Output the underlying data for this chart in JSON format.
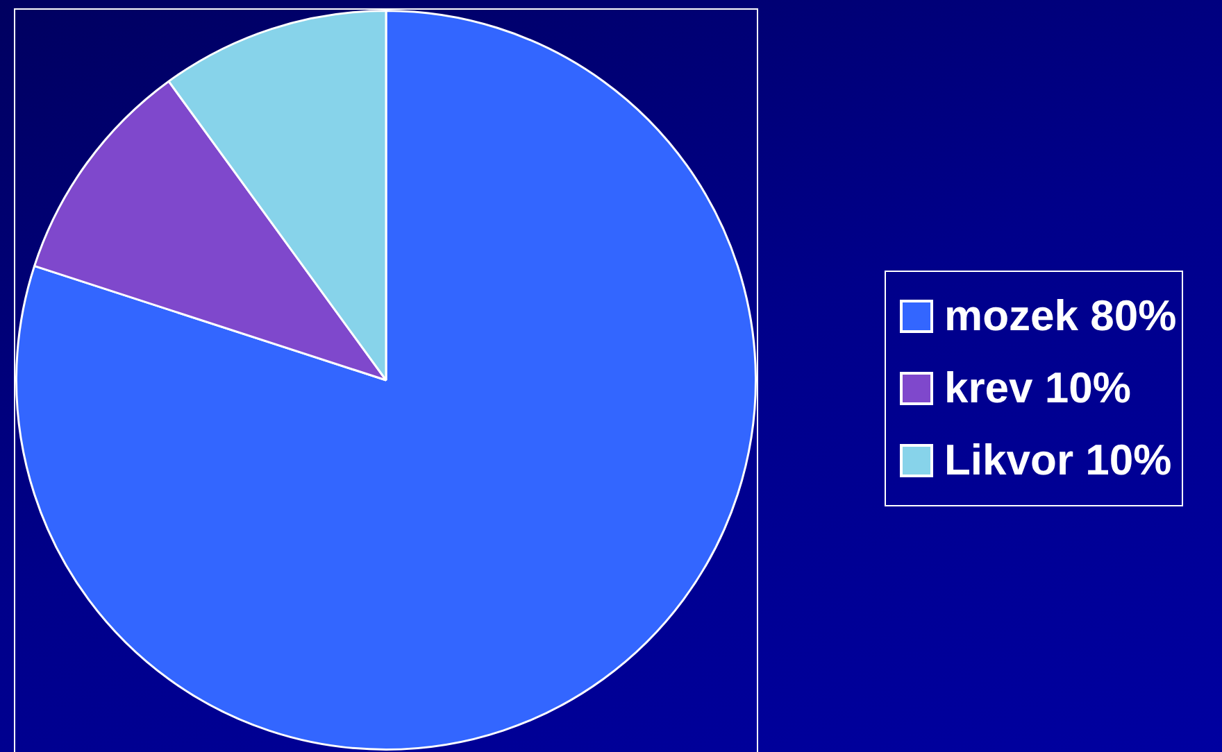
{
  "chart_data": {
    "type": "pie",
    "categories": [
      "mozek 80%",
      "krev 10%",
      "Likvor 10%"
    ],
    "values": [
      80,
      10,
      10
    ],
    "colors": [
      "#3366ff",
      "#7f48cc",
      "#87d3ea"
    ],
    "legend": "right"
  }
}
